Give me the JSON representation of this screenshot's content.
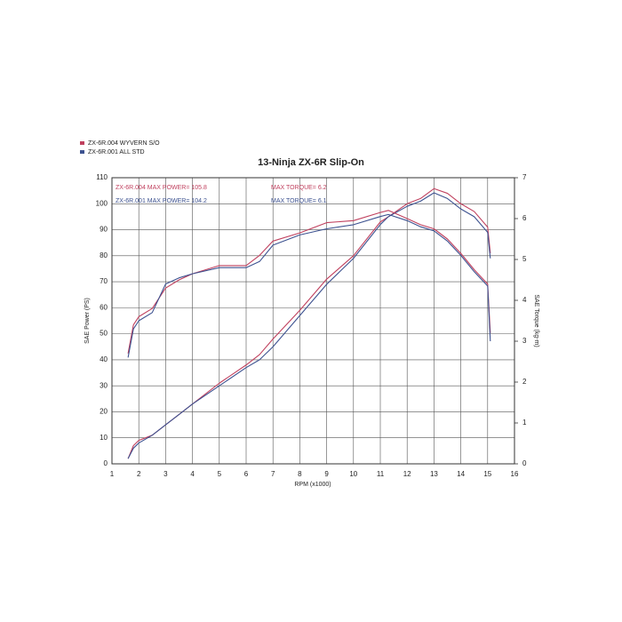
{
  "chart_data": {
    "type": "line",
    "title": "13-Ninja ZX-6R Slip-On",
    "x_label": "RPM (x1000)",
    "y_label": "SAE Power (PS)",
    "y2_label": "SAE Torque (kg-m)",
    "x": [
      1.6,
      1.8,
      2,
      2.5,
      3,
      3.5,
      4,
      5,
      6,
      6.5,
      7,
      8,
      9,
      10,
      11,
      11.3,
      12,
      12.5,
      13,
      13.5,
      14,
      14.5,
      15,
      15.1
    ],
    "series": [
      {
        "name": "ZX-6R.004  WYVERN S/O",
        "color": "#c0405e",
        "values": [
          2,
          7,
          9,
          11,
          15,
          19,
          23,
          31,
          38,
          42,
          48,
          59,
          71,
          80,
          93,
          95,
          100,
          102,
          105.8,
          104,
          100,
          97,
          91,
          81
        ]
      },
      {
        "name": "ZX-6R.001  ALL STD",
        "color": "#3d5290",
        "values": [
          2,
          6,
          8,
          11,
          15,
          19,
          23,
          30,
          37,
          40,
          45,
          57,
          69,
          79,
          92,
          95,
          99,
          101,
          104.2,
          102,
          98,
          95,
          89,
          79
        ]
      },
      {
        "color": "#c0405e",
        "axis": "y2",
        "values": [
          2.7,
          3.4,
          3.6,
          3.8,
          4.3,
          4.5,
          4.65,
          4.85,
          4.85,
          5.1,
          5.45,
          5.65,
          5.9,
          5.95,
          6.15,
          6.2,
          6.0,
          5.85,
          5.75,
          5.5,
          5.15,
          4.75,
          4.4,
          3.2
        ]
      },
      {
        "color": "#3d5290",
        "axis": "y2",
        "values": [
          2.6,
          3.3,
          3.5,
          3.7,
          4.4,
          4.55,
          4.65,
          4.8,
          4.8,
          4.95,
          5.35,
          5.6,
          5.75,
          5.85,
          6.05,
          6.1,
          5.95,
          5.8,
          5.7,
          5.45,
          5.1,
          4.7,
          4.35,
          3.0
        ]
      }
    ],
    "annotations": [
      {
        "text": "ZX-6R.004  MAX POWER= 105.8",
        "color": "#c0405e"
      },
      {
        "text": "ZX-6R.001  MAX POWER= 104.2",
        "color": "#3d5290"
      },
      {
        "text": "MAX TORQUE= 6.2",
        "color": "#c0405e"
      },
      {
        "text": "MAX TORQUE= 6.1",
        "color": "#3d5290"
      }
    ],
    "xlim": [
      1,
      16
    ],
    "xticks": [
      1,
      2,
      3,
      4,
      5,
      6,
      7,
      8,
      9,
      10,
      11,
      12,
      13,
      14,
      15,
      16
    ],
    "ylim": [
      0,
      110
    ],
    "yticks": [
      0,
      10,
      20,
      30,
      40,
      50,
      60,
      70,
      80,
      90,
      100,
      110
    ],
    "y2lim": [
      0,
      7
    ],
    "y2ticks": [
      0,
      1,
      2,
      3,
      4,
      5,
      6,
      7
    ],
    "grid": true
  }
}
